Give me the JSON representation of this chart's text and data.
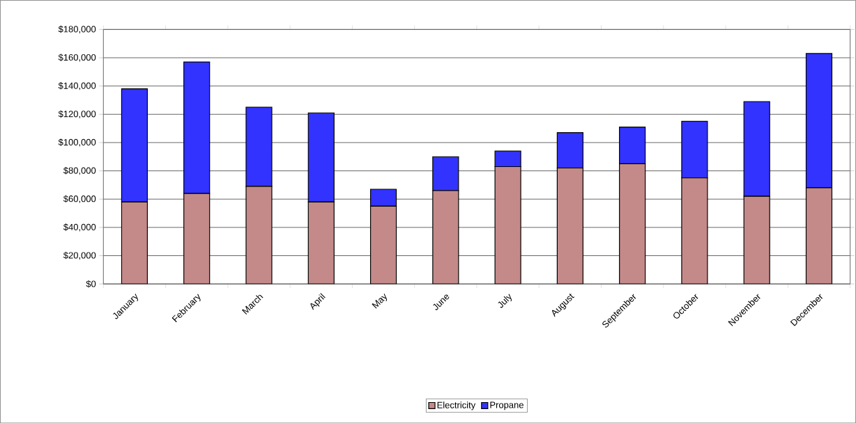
{
  "chart_data": {
    "type": "bar",
    "stacked": true,
    "categories": [
      "January",
      "February",
      "March",
      "April",
      "May",
      "June",
      "July",
      "August",
      "September",
      "October",
      "November",
      "December"
    ],
    "series": [
      {
        "name": "Electricity",
        "color": "#c48a8a",
        "values": [
          58000,
          64000,
          69000,
          58000,
          55000,
          66000,
          83000,
          82000,
          85000,
          75000,
          62000,
          68000
        ]
      },
      {
        "name": "Propane",
        "color": "#3333ff",
        "values": [
          80000,
          93000,
          56000,
          63000,
          12000,
          24000,
          11000,
          25000,
          26000,
          40000,
          67000,
          95000
        ]
      }
    ],
    "ylim": [
      0,
      180000
    ],
    "yticks": [
      {
        "value": 0,
        "label": "$0"
      },
      {
        "value": 20000,
        "label": "$20,000"
      },
      {
        "value": 40000,
        "label": "$40,000"
      },
      {
        "value": 60000,
        "label": "$60,000"
      },
      {
        "value": 80000,
        "label": "$80,000"
      },
      {
        "value": 100000,
        "label": "$100,000"
      },
      {
        "value": 120000,
        "label": "$120,000"
      },
      {
        "value": 140000,
        "label": "$140,000"
      },
      {
        "value": 160000,
        "label": "$160,000"
      },
      {
        "value": 180000,
        "label": "$180,000"
      }
    ],
    "grid": "y",
    "legend": "bottom"
  }
}
